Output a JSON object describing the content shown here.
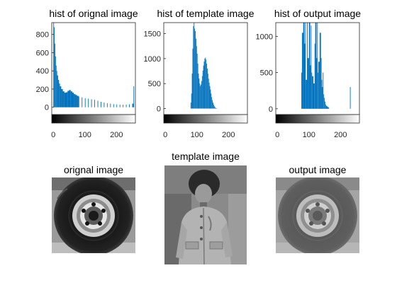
{
  "colors": {
    "bar": "#0072BD",
    "axis": "#262626",
    "background": "#ffffff"
  },
  "chart_data": [
    {
      "type": "bar",
      "title": "hist of orignal image",
      "xlim": [
        -5,
        260
      ],
      "ylim": [
        -80,
        930
      ],
      "xticks": [
        0,
        100,
        200
      ],
      "yticks": [
        0,
        200,
        400,
        600,
        800
      ],
      "colorbar": "grayscale 0-255",
      "bins": [
        [
          0,
          930
        ],
        [
          2,
          880
        ],
        [
          4,
          700
        ],
        [
          6,
          560
        ],
        [
          8,
          460
        ],
        [
          10,
          400
        ],
        [
          12,
          350
        ],
        [
          15,
          300
        ],
        [
          18,
          260
        ],
        [
          21,
          230
        ],
        [
          25,
          200
        ],
        [
          30,
          175
        ],
        [
          35,
          160
        ],
        [
          40,
          165
        ],
        [
          45,
          180
        ],
        [
          50,
          190
        ],
        [
          55,
          175
        ],
        [
          60,
          160
        ],
        [
          65,
          145
        ],
        [
          70,
          135
        ],
        [
          75,
          125
        ],
        [
          80,
          118
        ],
        [
          90,
          110
        ],
        [
          100,
          100
        ],
        [
          110,
          95
        ],
        [
          120,
          88
        ],
        [
          130,
          82
        ],
        [
          140,
          72
        ],
        [
          150,
          60
        ],
        [
          160,
          52
        ],
        [
          170,
          45
        ],
        [
          180,
          40
        ],
        [
          190,
          35
        ],
        [
          200,
          32
        ],
        [
          210,
          30
        ],
        [
          220,
          28
        ],
        [
          230,
          30
        ],
        [
          240,
          33
        ],
        [
          250,
          40
        ],
        [
          254,
          230
        ]
      ]
    },
    {
      "type": "bar",
      "title": "hist of template image",
      "xlim": [
        -5,
        260
      ],
      "ylim": [
        -120,
        1720
      ],
      "xticks": [
        0,
        100,
        200
      ],
      "yticks": [
        0,
        500,
        1000,
        1500
      ],
      "colorbar": "grayscale 0-255",
      "bins": [
        [
          80,
          120
        ],
        [
          82,
          300
        ],
        [
          84,
          700
        ],
        [
          86,
          1200
        ],
        [
          88,
          1650
        ],
        [
          90,
          1720
        ],
        [
          92,
          1600
        ],
        [
          94,
          1550
        ],
        [
          96,
          1400
        ],
        [
          98,
          1250
        ],
        [
          100,
          1100
        ],
        [
          102,
          900
        ],
        [
          104,
          700
        ],
        [
          106,
          600
        ],
        [
          108,
          500
        ],
        [
          110,
          450
        ],
        [
          112,
          480
        ],
        [
          114,
          550
        ],
        [
          116,
          650
        ],
        [
          118,
          760
        ],
        [
          120,
          860
        ],
        [
          122,
          940
        ],
        [
          124,
          1000
        ],
        [
          126,
          1020
        ],
        [
          128,
          980
        ],
        [
          130,
          900
        ],
        [
          132,
          800
        ],
        [
          134,
          700
        ],
        [
          136,
          600
        ],
        [
          138,
          520
        ],
        [
          140,
          450
        ],
        [
          142,
          380
        ],
        [
          144,
          300
        ],
        [
          146,
          230
        ],
        [
          148,
          170
        ],
        [
          150,
          120
        ],
        [
          152,
          80
        ],
        [
          154,
          50
        ],
        [
          156,
          30
        ],
        [
          158,
          15
        ],
        [
          160,
          8
        ],
        [
          162,
          5
        ]
      ]
    },
    {
      "type": "bar",
      "title": "hist of output image",
      "xlim": [
        -5,
        260
      ],
      "ylim": [
        -80,
        1190
      ],
      "xticks": [
        0,
        100,
        200
      ],
      "yticks": [
        0,
        500,
        1000
      ],
      "colorbar": "grayscale 0-255",
      "bins": [
        [
          76,
          500
        ],
        [
          78,
          1050
        ],
        [
          82,
          1190
        ],
        [
          86,
          900
        ],
        [
          88,
          1190
        ],
        [
          90,
          400
        ],
        [
          94,
          1190
        ],
        [
          96,
          700
        ],
        [
          100,
          1190
        ],
        [
          104,
          600
        ],
        [
          106,
          1150
        ],
        [
          108,
          500
        ],
        [
          110,
          450
        ],
        [
          114,
          350
        ],
        [
          118,
          900
        ],
        [
          120,
          1190
        ],
        [
          124,
          700
        ],
        [
          126,
          1190
        ],
        [
          128,
          500
        ],
        [
          130,
          650
        ],
        [
          134,
          1050
        ],
        [
          138,
          700
        ],
        [
          140,
          400
        ],
        [
          142,
          300
        ],
        [
          144,
          500
        ],
        [
          146,
          200
        ],
        [
          148,
          150
        ],
        [
          150,
          100
        ],
        [
          152,
          60
        ],
        [
          154,
          40
        ],
        [
          158,
          25
        ],
        [
          162,
          15
        ],
        [
          230,
          300
        ]
      ]
    }
  ],
  "images": [
    {
      "title": "orignal image",
      "subject": "tire"
    },
    {
      "title": "template image",
      "subject": "child in jacket"
    },
    {
      "title": "output image",
      "subject": "tire (histogram matched)"
    }
  ]
}
